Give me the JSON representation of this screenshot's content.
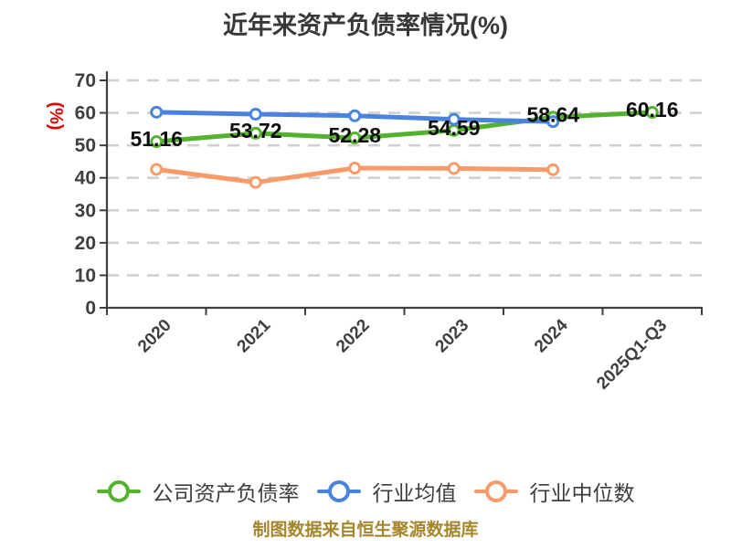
{
  "title": "近年来资产负债率情况(%)",
  "caption": "制图数据来自恒生聚源数据库",
  "colors": {
    "axis": "#3f3f3f",
    "grid": "#d0d0d0",
    "tick_label": "#3f3f3f",
    "data_label": "#0d0d0d",
    "y_unit": "#e60000",
    "title": "#383838",
    "legend_text": "#3d3d3d",
    "caption": "#a6862b",
    "background": "#ffffff"
  },
  "chart_data": {
    "type": "line",
    "title": "近年来资产负债率情况(%)",
    "categories": [
      "2020",
      "2021",
      "2022",
      "2023",
      "2024",
      "2025Q1-Q3"
    ],
    "series": [
      {
        "key": "company-debt-ratio",
        "name": "公司资产负债率",
        "color": "#54b32e",
        "values": [
          51.16,
          53.72,
          52.28,
          54.59,
          58.64,
          60.16
        ],
        "labels": [
          "51.16",
          "53.72",
          "52.28",
          "54.59",
          "58.64",
          "60.16"
        ],
        "show_labels": true
      },
      {
        "key": "industry-mean",
        "name": "行业均值",
        "color": "#4a83de",
        "values": [
          60.2,
          59.6,
          59.1,
          58.0,
          57.3,
          null
        ],
        "labels": [],
        "show_labels": false
      },
      {
        "key": "industry-median",
        "name": "行业中位数",
        "color": "#f89b69",
        "values": [
          42.6,
          38.6,
          43.0,
          42.9,
          42.5,
          null
        ],
        "labels": [],
        "show_labels": false
      }
    ],
    "ylim": [
      0,
      70
    ],
    "yticks": [
      0,
      10,
      20,
      30,
      40,
      50,
      60,
      70
    ],
    "ylabel": "(%)",
    "xlabel": "",
    "grid": "horizontal-dashed",
    "legend_position": "bottom"
  }
}
